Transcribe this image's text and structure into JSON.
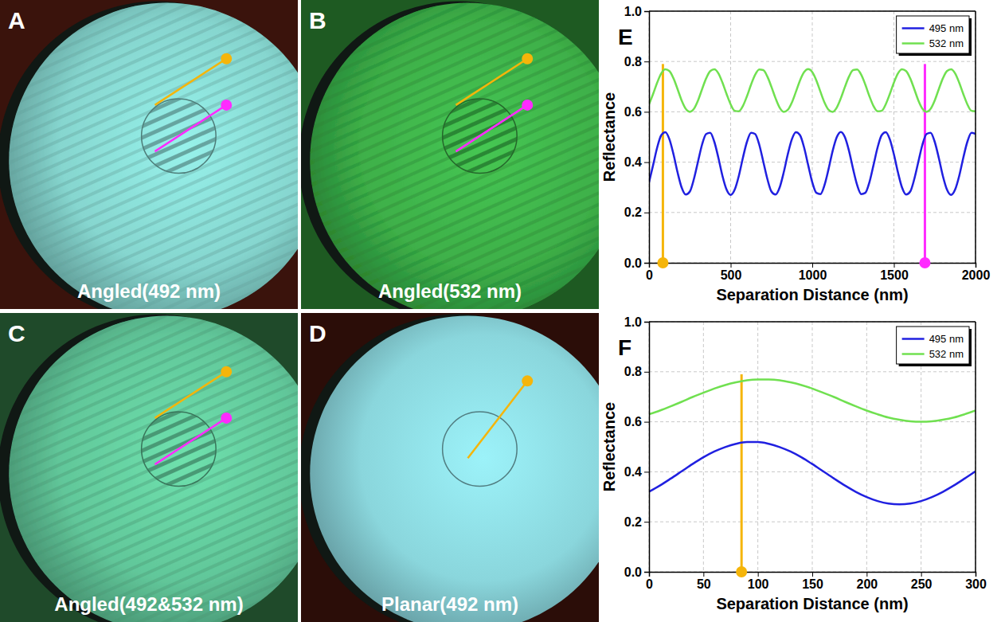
{
  "panels": [
    {
      "letter": "A",
      "caption": "Angled(492 nm)",
      "color": "#86d6cf",
      "background": "#3a130c",
      "fringes": true,
      "pins": [
        "#f5b50a",
        "#ff2bff"
      ]
    },
    {
      "letter": "B",
      "caption": "Angled(532 nm)",
      "color": "#3fb04a",
      "background": "#1e5a22",
      "fringes": true,
      "pins": [
        "#f5b50a",
        "#ff2bff"
      ]
    },
    {
      "letter": "C",
      "caption": "Angled(492&532 nm)",
      "color": "#62c79a",
      "background": "#1f4a2a",
      "fringes": true,
      "pins": [
        "#f5b50a",
        "#ff2bff"
      ]
    },
    {
      "letter": "D",
      "caption": "Planar(492 nm)",
      "color": "#8ad6dc",
      "background": "#2b0d08",
      "fringes": false,
      "pins": [
        "#f5b50a"
      ]
    }
  ],
  "chart_data": [
    {
      "type": "line",
      "letter": "E",
      "xlabel": "Separation Distance (nm)",
      "ylabel": "Reflectance",
      "xlim": [
        0,
        2000
      ],
      "ylim": [
        0,
        1
      ],
      "xticks": [
        0,
        500,
        1000,
        1500,
        2000
      ],
      "yticks": [
        {
          "value": 0,
          "label": "0.0"
        },
        0.2,
        0.4,
        0.6,
        0.8,
        {
          "value": 1,
          "label": "1.0"
        }
      ],
      "grid": true,
      "legend": "upper right",
      "x": [
        0,
        25,
        50,
        75,
        100,
        125,
        150,
        175,
        200,
        225,
        250,
        275,
        300,
        325,
        350,
        375,
        400,
        425,
        450,
        475,
        500,
        525,
        550,
        575,
        600,
        625,
        650,
        675,
        700,
        725,
        750,
        775,
        800,
        825,
        850,
        875,
        900,
        925,
        950,
        975,
        1000,
        1025,
        1050,
        1075,
        1100,
        1125,
        1150,
        1175,
        1200,
        1225,
        1250,
        1275,
        1300,
        1325,
        1350,
        1375,
        1400,
        1425,
        1450,
        1475,
        1500,
        1525,
        1550,
        1575,
        1600,
        1625,
        1650,
        1675,
        1700,
        1725,
        1750,
        1775,
        1800,
        1825,
        1850,
        1875,
        1900,
        1925,
        1950,
        1975,
        2000
      ],
      "series": [
        {
          "name": "495 nm",
          "color": "#2020e0",
          "values": [
            0.32,
            0.388,
            0.458,
            0.507,
            0.519,
            0.491,
            0.431,
            0.359,
            0.299,
            0.271,
            0.283,
            0.333,
            0.402,
            0.47,
            0.512,
            0.517,
            0.481,
            0.417,
            0.345,
            0.291,
            0.27,
            0.291,
            0.345,
            0.417,
            0.481,
            0.517,
            0.512,
            0.47,
            0.402,
            0.333,
            0.283,
            0.271,
            0.299,
            0.359,
            0.431,
            0.491,
            0.519,
            0.507,
            0.458,
            0.388,
            0.32,
            0.278,
            0.273,
            0.309,
            0.373,
            0.445,
            0.499,
            0.52,
            0.499,
            0.445,
            0.373,
            0.309,
            0.273,
            0.278,
            0.32,
            0.388,
            0.458,
            0.507,
            0.519,
            0.491,
            0.431,
            0.359,
            0.299,
            0.271,
            0.283,
            0.333,
            0.402,
            0.47,
            0.512,
            0.517,
            0.481,
            0.417,
            0.345,
            0.291,
            0.27,
            0.291,
            0.345,
            0.417,
            0.481,
            0.517,
            0.512
          ]
        },
        {
          "name": "532 nm",
          "color": "#70e050",
          "values": [
            0.63,
            0.671,
            0.716,
            0.753,
            0.769,
            0.762,
            0.733,
            0.69,
            0.645,
            0.612,
            0.6,
            0.612,
            0.645,
            0.69,
            0.733,
            0.762,
            0.769,
            0.753,
            0.716,
            0.671,
            0.63,
            0.604,
            0.602,
            0.623,
            0.662,
            0.708,
            0.747,
            0.768,
            0.766,
            0.74,
            0.699,
            0.654,
            0.617,
            0.6,
            0.608,
            0.637,
            0.68,
            0.725,
            0.758,
            0.77,
            0.758,
            0.725,
            0.68,
            0.637,
            0.608,
            0.6,
            0.617,
            0.654,
            0.699,
            0.74,
            0.766,
            0.768,
            0.747,
            0.708,
            0.662,
            0.623,
            0.602,
            0.604,
            0.63,
            0.671,
            0.716,
            0.753,
            0.769,
            0.762,
            0.733,
            0.69,
            0.645,
            0.612,
            0.6,
            0.612,
            0.645,
            0.69,
            0.733,
            0.762,
            0.769,
            0.753,
            0.716,
            0.671,
            0.63,
            0.604,
            0.602
          ]
        }
      ],
      "vlines": [
        {
          "x": 85,
          "top": 0.79,
          "color": "#f5b50a"
        },
        {
          "x": 1690,
          "top": 0.79,
          "color": "#ff2bff"
        }
      ]
    },
    {
      "type": "line",
      "letter": "F",
      "xlabel": "Separation Distance (nm)",
      "ylabel": "Reflectance",
      "xlim": [
        0,
        300
      ],
      "ylim": [
        0,
        1
      ],
      "xticks": [
        0,
        50,
        100,
        150,
        200,
        250,
        300
      ],
      "yticks": [
        {
          "value": 0,
          "label": "0.0"
        },
        0.2,
        0.4,
        0.6,
        0.8,
        {
          "value": 1,
          "label": "1.0"
        }
      ],
      "grid": true,
      "legend": "upper right",
      "x": [
        0,
        10,
        20,
        30,
        40,
        50,
        60,
        70,
        80,
        90,
        100,
        110,
        120,
        130,
        140,
        150,
        160,
        170,
        180,
        190,
        200,
        210,
        220,
        230,
        240,
        250,
        260,
        270,
        280,
        290,
        300
      ],
      "series": [
        {
          "name": "495 nm",
          "color": "#2020e0",
          "values": [
            0.32,
            0.345,
            0.373,
            0.402,
            0.431,
            0.458,
            0.481,
            0.499,
            0.512,
            0.519,
            0.519,
            0.512,
            0.499,
            0.481,
            0.458,
            0.431,
            0.402,
            0.373,
            0.345,
            0.32,
            0.299,
            0.283,
            0.273,
            0.27,
            0.273,
            0.283,
            0.299,
            0.32,
            0.345,
            0.373,
            0.402
          ]
        },
        {
          "name": "532 nm",
          "color": "#70e050",
          "values": [
            0.63,
            0.645,
            0.662,
            0.68,
            0.699,
            0.716,
            0.733,
            0.747,
            0.758,
            0.766,
            0.769,
            0.769,
            0.766,
            0.758,
            0.747,
            0.733,
            0.716,
            0.699,
            0.68,
            0.662,
            0.645,
            0.63,
            0.617,
            0.608,
            0.602,
            0.6,
            0.602,
            0.608,
            0.617,
            0.63,
            0.645
          ]
        }
      ],
      "vlines": [
        {
          "x": 85,
          "top": 0.79,
          "color": "#f5b50a"
        }
      ]
    }
  ]
}
